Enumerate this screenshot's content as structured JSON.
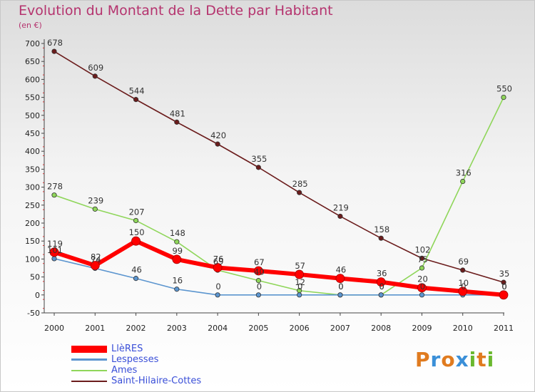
{
  "chart_data": {
    "type": "line",
    "title": "Evolution du Montant de la Dette par Habitant",
    "subtitle": "(en €)",
    "x": [
      "2000",
      "2001",
      "2002",
      "2003",
      "2004",
      "2005",
      "2006",
      "2007",
      "2008",
      "2009",
      "2010",
      "2011"
    ],
    "ylim": [
      -50,
      700
    ],
    "yticks": [
      -50,
      0,
      50,
      100,
      150,
      200,
      250,
      300,
      350,
      400,
      450,
      500,
      550,
      600,
      650,
      700
    ],
    "grid": false,
    "legend_position": "bottom-left",
    "series": [
      {
        "name": "LlèRES",
        "color": "#ff0000",
        "values": [
          119,
          82,
          150,
          99,
          76,
          67,
          57,
          46,
          36,
          20,
          10,
          0
        ]
      },
      {
        "name": "Lespesses",
        "color": "#5b95cf",
        "values": [
          101,
          74,
          46,
          16,
          0,
          0,
          0,
          0,
          0,
          0,
          0,
          0
        ]
      },
      {
        "name": "Ames",
        "color": "#8fd65a",
        "values": [
          278,
          239,
          207,
          148,
          69,
          40,
          12,
          0,
          0,
          75,
          316,
          550
        ]
      },
      {
        "name": "Saint-Hilaire-Cottes",
        "color": "#6b1c1c",
        "values": [
          678,
          609,
          544,
          481,
          420,
          355,
          285,
          219,
          158,
          102,
          69,
          35
        ]
      }
    ]
  },
  "logo": {
    "text": "Proxiti",
    "letters": [
      "P",
      "r",
      "o",
      "x",
      "i",
      "t",
      "i"
    ],
    "colors": [
      "#e07b1f",
      "#3a8fd8",
      "#e07b1f",
      "#3a8fd8",
      "#6ab82e",
      "#e07b1f",
      "#6ab82e"
    ]
  }
}
